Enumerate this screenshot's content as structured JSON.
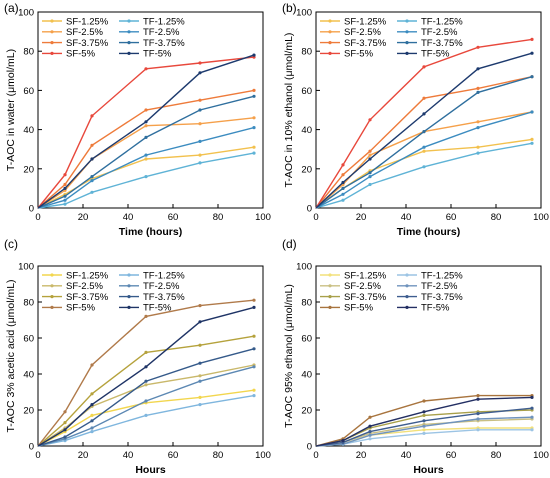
{
  "chart_data": [
    {
      "type": "line",
      "panel_label": "(a)",
      "xlabel": "Time (hours)",
      "ylabel": "T-AOC in water (μmol/mL)",
      "xlim": [
        0,
        100
      ],
      "ylim": [
        0,
        100
      ],
      "xticks": [
        0,
        20,
        40,
        60,
        80,
        100
      ],
      "yticks": [
        0,
        20,
        40,
        60,
        80,
        100
      ],
      "legend_placement": "top-left",
      "x": [
        0,
        12,
        24,
        48,
        72,
        96
      ],
      "series": [
        {
          "name": "SF-1.25%",
          "color": "#f2c14e",
          "values": [
            0,
            7,
            15,
            25,
            27,
            31
          ]
        },
        {
          "name": "TF-1.25%",
          "color": "#5fb3d6",
          "values": [
            0,
            2,
            8,
            16,
            23,
            28
          ]
        },
        {
          "name": "SF-2.5%",
          "color": "#f5a04a",
          "values": [
            0,
            9,
            25,
            42,
            43,
            46
          ]
        },
        {
          "name": "TF-2.5%",
          "color": "#3c8cc0",
          "values": [
            0,
            4,
            14,
            27,
            34,
            41
          ]
        },
        {
          "name": "SF-3.75%",
          "color": "#ee7b3b",
          "values": [
            0,
            12,
            32,
            50,
            55,
            60
          ]
        },
        {
          "name": "TF-3.75%",
          "color": "#2f6f9e",
          "values": [
            0,
            6,
            16,
            36,
            50,
            57
          ]
        },
        {
          "name": "SF-5%",
          "color": "#e8483c",
          "values": [
            0,
            17,
            47,
            71,
            74,
            77
          ]
        },
        {
          "name": "TF-5%",
          "color": "#1d3a6e",
          "values": [
            0,
            10,
            25,
            44,
            69,
            78
          ]
        }
      ]
    },
    {
      "type": "line",
      "panel_label": "(b)",
      "xlabel": "Time (hours)",
      "ylabel": "T-AOC in 10% ethanol (μmol/mL)",
      "xlim": [
        0,
        100
      ],
      "ylim": [
        0,
        100
      ],
      "xticks": [
        0,
        20,
        40,
        60,
        80,
        100
      ],
      "yticks": [
        0,
        20,
        40,
        60,
        80,
        100
      ],
      "legend_placement": "top-left",
      "x": [
        0,
        12,
        24,
        48,
        72,
        96
      ],
      "series": [
        {
          "name": "SF-1.25%",
          "color": "#f2c14e",
          "values": [
            0,
            10,
            19,
            29,
            31,
            35
          ]
        },
        {
          "name": "TF-1.25%",
          "color": "#5fb3d6",
          "values": [
            0,
            4,
            12,
            21,
            28,
            33
          ]
        },
        {
          "name": "SF-2.5%",
          "color": "#f5a04a",
          "values": [
            0,
            12,
            27,
            39,
            44,
            49
          ]
        },
        {
          "name": "TF-2.5%",
          "color": "#3c8cc0",
          "values": [
            0,
            7,
            16,
            31,
            41,
            49
          ]
        },
        {
          "name": "SF-3.75%",
          "color": "#ee7b3b",
          "values": [
            0,
            17,
            29,
            56,
            61,
            67
          ]
        },
        {
          "name": "TF-3.75%",
          "color": "#2f6f9e",
          "values": [
            0,
            10,
            18,
            39,
            59,
            67
          ]
        },
        {
          "name": "SF-5%",
          "color": "#e8483c",
          "values": [
            0,
            22,
            45,
            72,
            82,
            86
          ]
        },
        {
          "name": "TF-5%",
          "color": "#1d3a6e",
          "values": [
            0,
            13,
            25,
            48,
            71,
            79
          ]
        }
      ]
    },
    {
      "type": "line",
      "panel_label": "(c)",
      "xlabel": "Hours",
      "ylabel": "T-AOC 3% acetic acid (μmol/mL)",
      "xlim": [
        0,
        100
      ],
      "ylim": [
        0,
        100
      ],
      "xticks": [
        0,
        20,
        40,
        60,
        80,
        100
      ],
      "yticks": [
        0,
        20,
        40,
        60,
        80,
        100
      ],
      "legend_placement": "top-left",
      "x": [
        0,
        12,
        24,
        48,
        72,
        96
      ],
      "series": [
        {
          "name": "SF-1.25%",
          "color": "#f2d64e",
          "values": [
            0,
            8,
            17,
            24,
            27,
            31
          ]
        },
        {
          "name": "TF-1.25%",
          "color": "#7fb6de",
          "values": [
            0,
            3,
            8,
            17,
            23,
            28
          ]
        },
        {
          "name": "SF-2.5%",
          "color": "#c9b86a",
          "values": [
            0,
            10,
            22,
            34,
            39,
            45
          ]
        },
        {
          "name": "TF-2.5%",
          "color": "#5c88b3",
          "values": [
            0,
            4,
            10,
            25,
            36,
            44
          ]
        },
        {
          "name": "SF-3.75%",
          "color": "#b5a23c",
          "values": [
            0,
            13,
            29,
            52,
            56,
            61
          ]
        },
        {
          "name": "TF-3.75%",
          "color": "#355a8a",
          "values": [
            0,
            5,
            14,
            36,
            46,
            54
          ]
        },
        {
          "name": "SF-5%",
          "color": "#b07a4a",
          "values": [
            0,
            19,
            45,
            72,
            78,
            81
          ]
        },
        {
          "name": "TF-5%",
          "color": "#1f3466",
          "values": [
            0,
            9,
            23,
            44,
            69,
            77
          ]
        }
      ]
    },
    {
      "type": "line",
      "panel_label": "(d)",
      "xlabel": "Hours",
      "ylabel": "T-AOC 95% ethanol (μmol/mL)",
      "xlim": [
        0,
        100
      ],
      "ylim": [
        0,
        100
      ],
      "xticks": [
        0,
        20,
        40,
        60,
        80,
        100
      ],
      "yticks": [
        0,
        20,
        40,
        60,
        80,
        100
      ],
      "legend_placement": "top-left",
      "x": [
        0,
        12,
        24,
        48,
        72,
        96
      ],
      "series": [
        {
          "name": "SF-1.25%",
          "color": "#f2e07a",
          "values": [
            0,
            1,
            6,
            9,
            10,
            10
          ]
        },
        {
          "name": "TF-1.25%",
          "color": "#9cc4e4",
          "values": [
            0,
            1,
            4,
            7,
            9,
            9
          ]
        },
        {
          "name": "SF-2.5%",
          "color": "#c9bf82",
          "values": [
            0,
            2,
            7,
            12,
            14,
            15
          ]
        },
        {
          "name": "TF-2.5%",
          "color": "#6f93bd",
          "values": [
            0,
            1,
            6,
            11,
            15,
            16
          ]
        },
        {
          "name": "SF-3.75%",
          "color": "#a8a04a",
          "values": [
            0,
            3,
            10,
            17,
            19,
            20
          ]
        },
        {
          "name": "TF-3.75%",
          "color": "#3e5d8f",
          "values": [
            0,
            2,
            8,
            14,
            18,
            21
          ]
        },
        {
          "name": "SF-5%",
          "color": "#a8743e",
          "values": [
            0,
            4,
            16,
            25,
            28,
            28
          ]
        },
        {
          "name": "TF-5%",
          "color": "#232f63",
          "values": [
            0,
            3,
            11,
            19,
            26,
            27
          ]
        }
      ]
    }
  ]
}
